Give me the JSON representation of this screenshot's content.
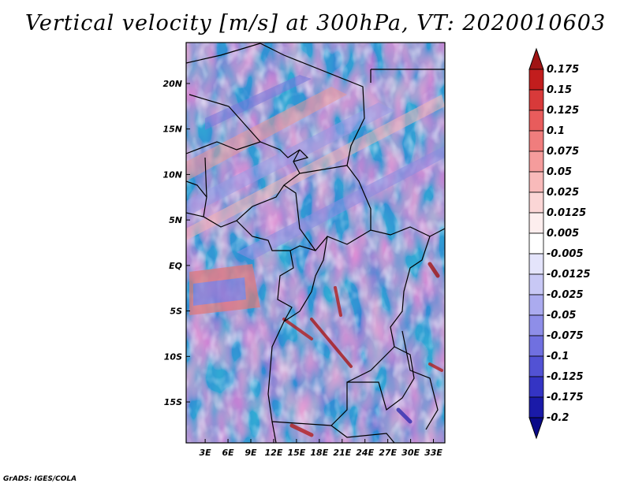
{
  "title": "Vertical velocity [m/s] at 300hPa, VT: 2020010603",
  "credit": "GrADS: IGES/COLA",
  "map": {
    "lat_labels": [
      "20N",
      "15N",
      "10N",
      "5N",
      "EQ",
      "5S",
      "10S",
      "15S"
    ],
    "lon_labels": [
      "3E",
      "6E",
      "9E",
      "12E",
      "15E",
      "18E",
      "21E",
      "24E",
      "27E",
      "30E",
      "33E"
    ],
    "lat_range": [
      -19.5,
      24.5
    ],
    "lon_range": [
      0.5,
      34.5
    ]
  },
  "colorbar": {
    "labels": [
      "0.175",
      "0.15",
      "0.125",
      "0.1",
      "0.075",
      "0.05",
      "0.025",
      "0.0125",
      "0.005",
      "-0.005",
      "-0.0125",
      "-0.025",
      "-0.05",
      "-0.075",
      "-0.1",
      "-0.125",
      "-0.175",
      "-0.2"
    ],
    "colors": [
      "#a01414",
      "#c21d1d",
      "#d83a3a",
      "#e85c5c",
      "#f07d7d",
      "#f59c9c",
      "#f8baba",
      "#fbd6d6",
      "#fdeeee",
      "#ffffff",
      "#e4e4fb",
      "#c8c8f5",
      "#ababef",
      "#8e8ee8",
      "#7070e0",
      "#5252d4",
      "#3434c4",
      "#1a1aa8",
      "#0a0a88"
    ]
  }
}
